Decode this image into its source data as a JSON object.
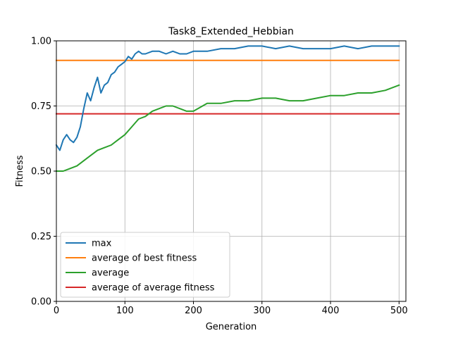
{
  "chart_data": {
    "type": "line",
    "title": "Task8_Extended_Hebbian",
    "xlabel": "Generation",
    "ylabel": "Fitness",
    "xlim": [
      0,
      510
    ],
    "ylim": [
      0.0,
      1.0
    ],
    "x_ticks": [
      0,
      100,
      200,
      300,
      400,
      500
    ],
    "y_ticks": [
      0.0,
      0.25,
      0.5,
      0.75,
      1.0
    ],
    "x_tick_labels": [
      "0",
      "100",
      "200",
      "300",
      "400",
      "500"
    ],
    "y_tick_labels": [
      "0.00",
      "0.25",
      "0.50",
      "0.75",
      "1.00"
    ],
    "grid": true,
    "legend_position": "lower-left",
    "series": [
      {
        "name": "max",
        "color": "#1f77b4",
        "x": [
          0,
          5,
          10,
          15,
          20,
          25,
          30,
          35,
          40,
          45,
          50,
          55,
          60,
          65,
          70,
          75,
          80,
          85,
          90,
          95,
          100,
          105,
          110,
          115,
          120,
          125,
          130,
          140,
          150,
          160,
          170,
          180,
          190,
          200,
          220,
          240,
          260,
          280,
          300,
          320,
          340,
          360,
          380,
          400,
          420,
          440,
          460,
          480,
          500
        ],
        "values": [
          0.6,
          0.58,
          0.62,
          0.64,
          0.62,
          0.61,
          0.63,
          0.67,
          0.74,
          0.8,
          0.77,
          0.82,
          0.86,
          0.8,
          0.83,
          0.84,
          0.87,
          0.88,
          0.9,
          0.91,
          0.92,
          0.94,
          0.93,
          0.95,
          0.96,
          0.95,
          0.95,
          0.96,
          0.96,
          0.95,
          0.96,
          0.95,
          0.95,
          0.96,
          0.96,
          0.97,
          0.97,
          0.98,
          0.98,
          0.97,
          0.98,
          0.97,
          0.97,
          0.97,
          0.98,
          0.97,
          0.98,
          0.98,
          0.98
        ]
      },
      {
        "name": "average of best fitness",
        "color": "#ff7f0e",
        "x": [
          0,
          500
        ],
        "values": [
          0.925,
          0.925
        ]
      },
      {
        "name": "average",
        "color": "#2ca02c",
        "x": [
          0,
          10,
          20,
          30,
          40,
          50,
          60,
          70,
          80,
          90,
          100,
          110,
          120,
          130,
          140,
          150,
          160,
          170,
          180,
          190,
          200,
          220,
          240,
          260,
          280,
          300,
          320,
          340,
          360,
          380,
          400,
          420,
          440,
          460,
          480,
          500
        ],
        "values": [
          0.5,
          0.5,
          0.51,
          0.52,
          0.54,
          0.56,
          0.58,
          0.59,
          0.6,
          0.62,
          0.64,
          0.67,
          0.7,
          0.71,
          0.73,
          0.74,
          0.75,
          0.75,
          0.74,
          0.73,
          0.73,
          0.76,
          0.76,
          0.77,
          0.77,
          0.78,
          0.78,
          0.77,
          0.77,
          0.78,
          0.79,
          0.79,
          0.8,
          0.8,
          0.81,
          0.83
        ]
      },
      {
        "name": "average of average fitness",
        "color": "#d62728",
        "x": [
          0,
          500
        ],
        "values": [
          0.72,
          0.72
        ]
      }
    ]
  }
}
